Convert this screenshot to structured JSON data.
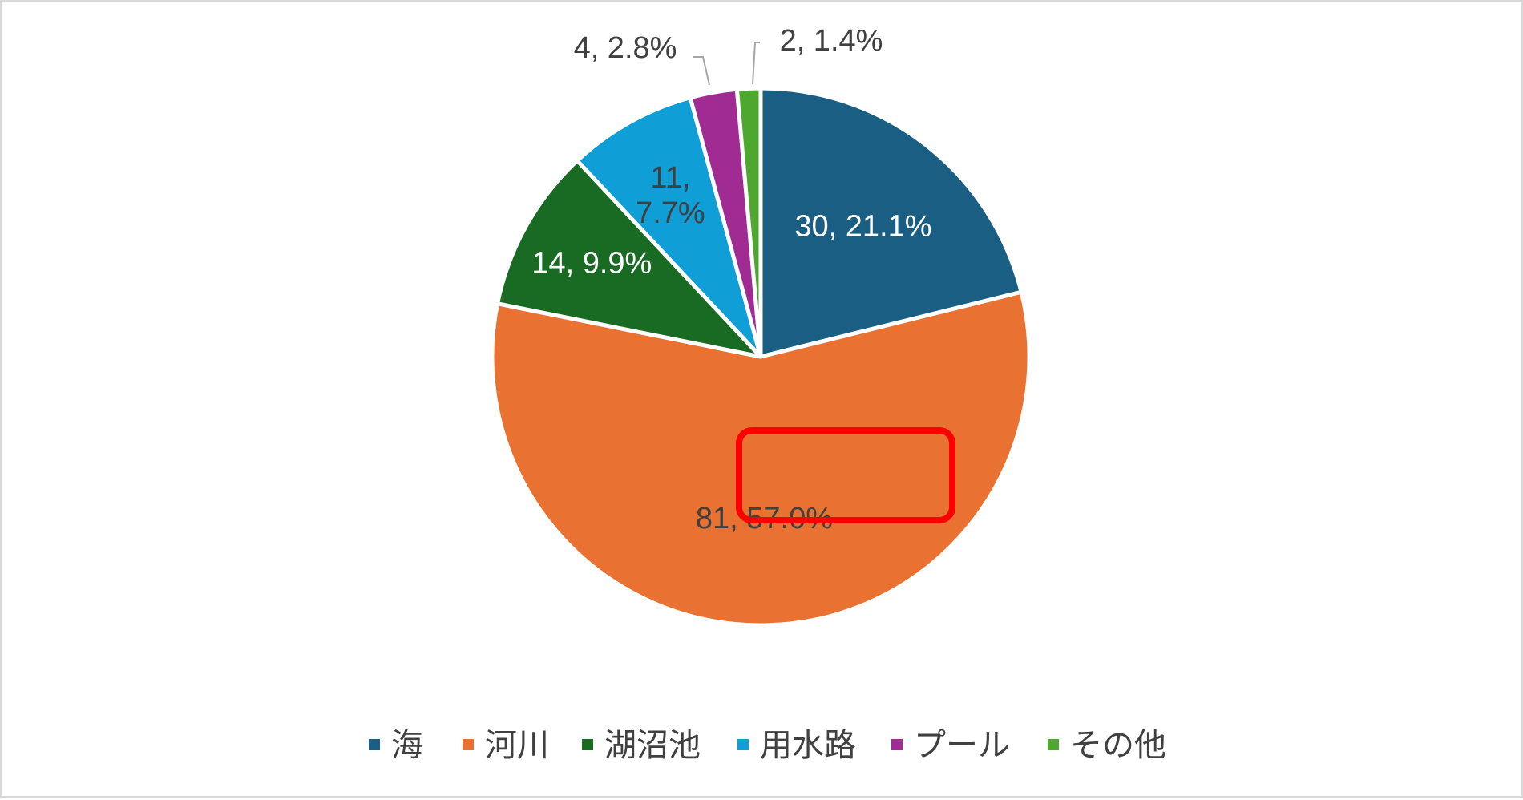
{
  "chart_data": {
    "type": "pie",
    "title": "",
    "categories": [
      "海",
      "河川",
      "湖沼池",
      "用水路",
      "プール",
      "その他"
    ],
    "values": [
      30,
      81,
      14,
      11,
      4,
      2
    ],
    "percents": [
      "21.1%",
      "57.0%",
      "9.9%",
      "7.7%",
      "2.8%",
      "1.4%"
    ],
    "colors": [
      "#1a5e83",
      "#e97132",
      "#196b24",
      "#0f9ed5",
      "#a02b93",
      "#4ea72e"
    ],
    "labels": [
      "30, 21.1%",
      "81, 57.0%",
      "14, 9.9%",
      "11,\n7.7%",
      "4, 2.8%",
      "2, 1.4%"
    ],
    "label_colors": [
      "#ffffff",
      "#404040",
      "#ffffff",
      "#404040",
      "#404040",
      "#404040"
    ],
    "start_angle": "12 o'clock, clockwise",
    "legend_position": "bottom",
    "highlighted_label": "81, 57.0%",
    "highlight_color": "#ff0000"
  }
}
